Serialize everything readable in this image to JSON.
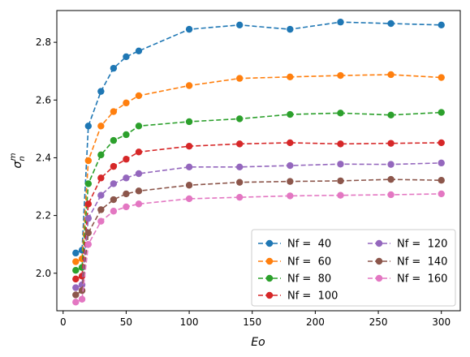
{
  "chart_data": {
    "type": "line",
    "xlabel": "Eo",
    "ylabel": "σ",
    "ylabel_sup": "m",
    "ylabel_sub": "n",
    "xlim": [
      -5,
      315
    ],
    "ylim": [
      1.87,
      2.91
    ],
    "xticks": [
      0,
      50,
      100,
      150,
      200,
      250,
      300
    ],
    "xtick_labels": [
      "0",
      "50",
      "100",
      "150",
      "200",
      "250",
      "300"
    ],
    "yticks": [
      2.0,
      2.2,
      2.4,
      2.6,
      2.8
    ],
    "ytick_labels": [
      "2.0",
      "2.2",
      "2.4",
      "2.6",
      "2.8"
    ],
    "grid": false,
    "legend_position": "lower-right",
    "legend_columns": 2,
    "line_style": "dashed",
    "marker": "circle",
    "x": [
      10,
      15,
      20,
      30,
      40,
      50,
      60,
      100,
      140,
      180,
      220,
      260,
      300
    ],
    "series": [
      {
        "name": "Nf =  40",
        "color": "#1f77b4",
        "values": [
          2.07,
          2.08,
          2.51,
          2.63,
          2.71,
          2.75,
          2.77,
          2.845,
          2.86,
          2.845,
          2.87,
          2.865,
          2.86
        ]
      },
      {
        "name": "Nf =  60",
        "color": "#ff7f0e",
        "values": [
          2.04,
          2.05,
          2.39,
          2.51,
          2.56,
          2.59,
          2.615,
          2.65,
          2.675,
          2.68,
          2.685,
          2.688,
          2.678
        ]
      },
      {
        "name": "Nf =  80",
        "color": "#2ca02c",
        "values": [
          2.01,
          2.02,
          2.31,
          2.41,
          2.46,
          2.48,
          2.51,
          2.525,
          2.535,
          2.55,
          2.555,
          2.548,
          2.557
        ]
      },
      {
        "name": "Nf =  100",
        "color": "#d62728",
        "values": [
          1.98,
          1.99,
          2.24,
          2.33,
          2.37,
          2.395,
          2.42,
          2.44,
          2.448,
          2.452,
          2.448,
          2.45,
          2.452
        ]
      },
      {
        "name": "Nf =  120",
        "color": "#9467bd",
        "values": [
          1.95,
          1.96,
          2.19,
          2.27,
          2.31,
          2.33,
          2.345,
          2.368,
          2.368,
          2.373,
          2.378,
          2.377,
          2.382
        ]
      },
      {
        "name": "Nf =  140",
        "color": "#8c564b",
        "values": [
          1.925,
          1.94,
          2.14,
          2.22,
          2.255,
          2.275,
          2.285,
          2.305,
          2.315,
          2.318,
          2.32,
          2.325,
          2.322
        ]
      },
      {
        "name": "Nf =  160",
        "color": "#e377c2",
        "values": [
          1.9,
          1.91,
          2.1,
          2.18,
          2.215,
          2.23,
          2.24,
          2.258,
          2.263,
          2.268,
          2.27,
          2.272,
          2.275
        ]
      }
    ]
  }
}
